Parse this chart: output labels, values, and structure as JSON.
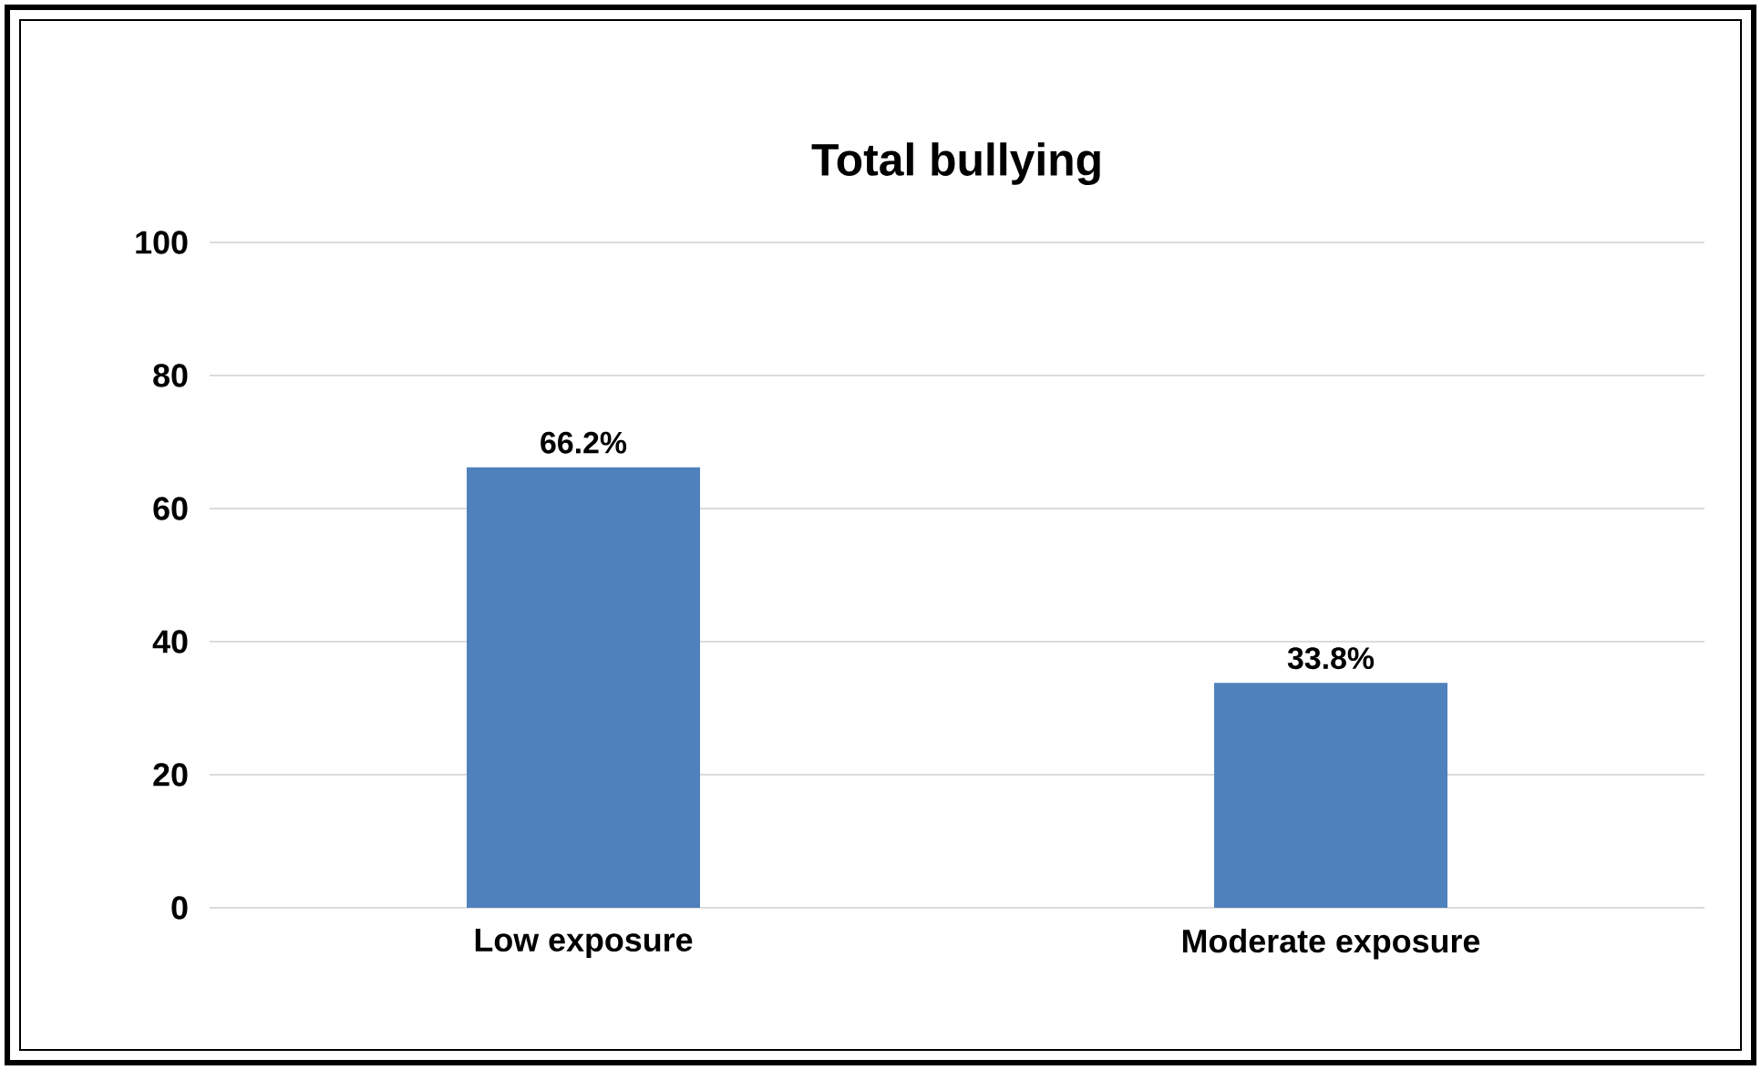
{
  "chart_data": {
    "type": "bar",
    "title": "Total bullying",
    "categories": [
      "Low exposure",
      "Moderate exposure"
    ],
    "values": [
      66.2,
      33.8
    ],
    "value_labels": [
      "66.2%",
      "33.8%"
    ],
    "color": "#4f81bd",
    "ylim": [
      0,
      100
    ],
    "yticks": [
      0,
      20,
      40,
      60,
      80,
      100
    ],
    "grid": "y"
  }
}
